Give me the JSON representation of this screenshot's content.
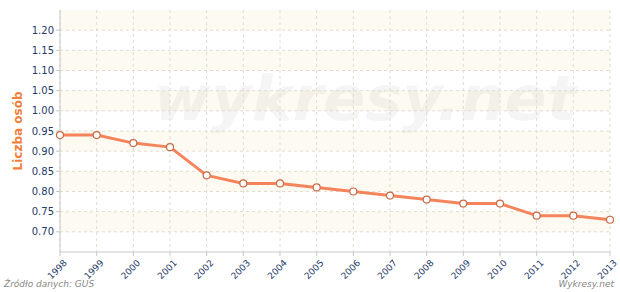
{
  "chart_data": {
    "type": "line",
    "y_label": "Liczba osób",
    "source": "Źródło danych: GUS",
    "credit": "Wykresy.net",
    "watermark": "wykresy.net",
    "x": [
      1998,
      1999,
      2000,
      2001,
      2002,
      2003,
      2004,
      2005,
      2006,
      2007,
      2008,
      2009,
      2010,
      2011,
      2012,
      2013
    ],
    "values": [
      0.94,
      0.94,
      0.92,
      0.91,
      0.84,
      0.82,
      0.82,
      0.81,
      0.8,
      0.79,
      0.78,
      0.77,
      0.77,
      0.74,
      0.74,
      0.73
    ],
    "color": "#f4845c",
    "marker": "circle",
    "line_style": "solid",
    "grid": true,
    "xlim": [
      1998,
      2013
    ],
    "xticks": [
      1998,
      1999,
      2000,
      2001,
      2002,
      2003,
      2004,
      2005,
      2006,
      2007,
      2008,
      2009,
      2010,
      2011,
      2012,
      2013
    ],
    "ylim": [
      0.65,
      1.25
    ],
    "yticks": [
      {
        "value": 0.7,
        "label": "0.70"
      },
      0.75,
      {
        "value": 0.8,
        "label": "0.80"
      },
      0.85,
      {
        "value": 0.9,
        "label": "0.90"
      },
      0.95,
      {
        "value": 1.0,
        "label": "1.00"
      },
      1.05,
      {
        "value": 1.1,
        "label": "1.10"
      },
      1.15,
      {
        "value": 1.2,
        "label": "1.20"
      }
    ]
  }
}
